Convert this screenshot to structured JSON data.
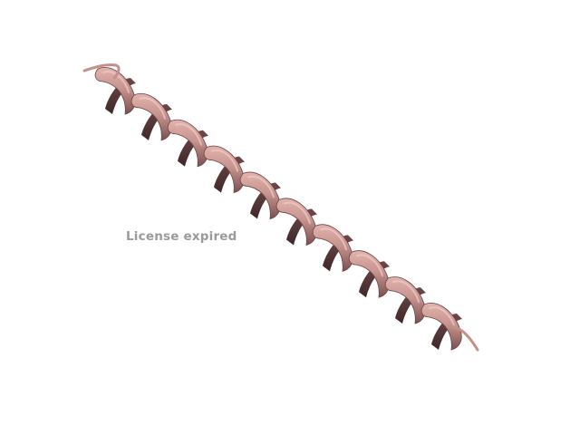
{
  "watermark": {
    "text": "License expired"
  },
  "structure": {
    "representation": "cartoon-alpha-helix",
    "colors": {
      "ribbon_light": "#d9a7a1",
      "ribbon_mid": "#b98480",
      "ribbon_dark": "#5e3c3c",
      "background": "#ffffff"
    }
  }
}
